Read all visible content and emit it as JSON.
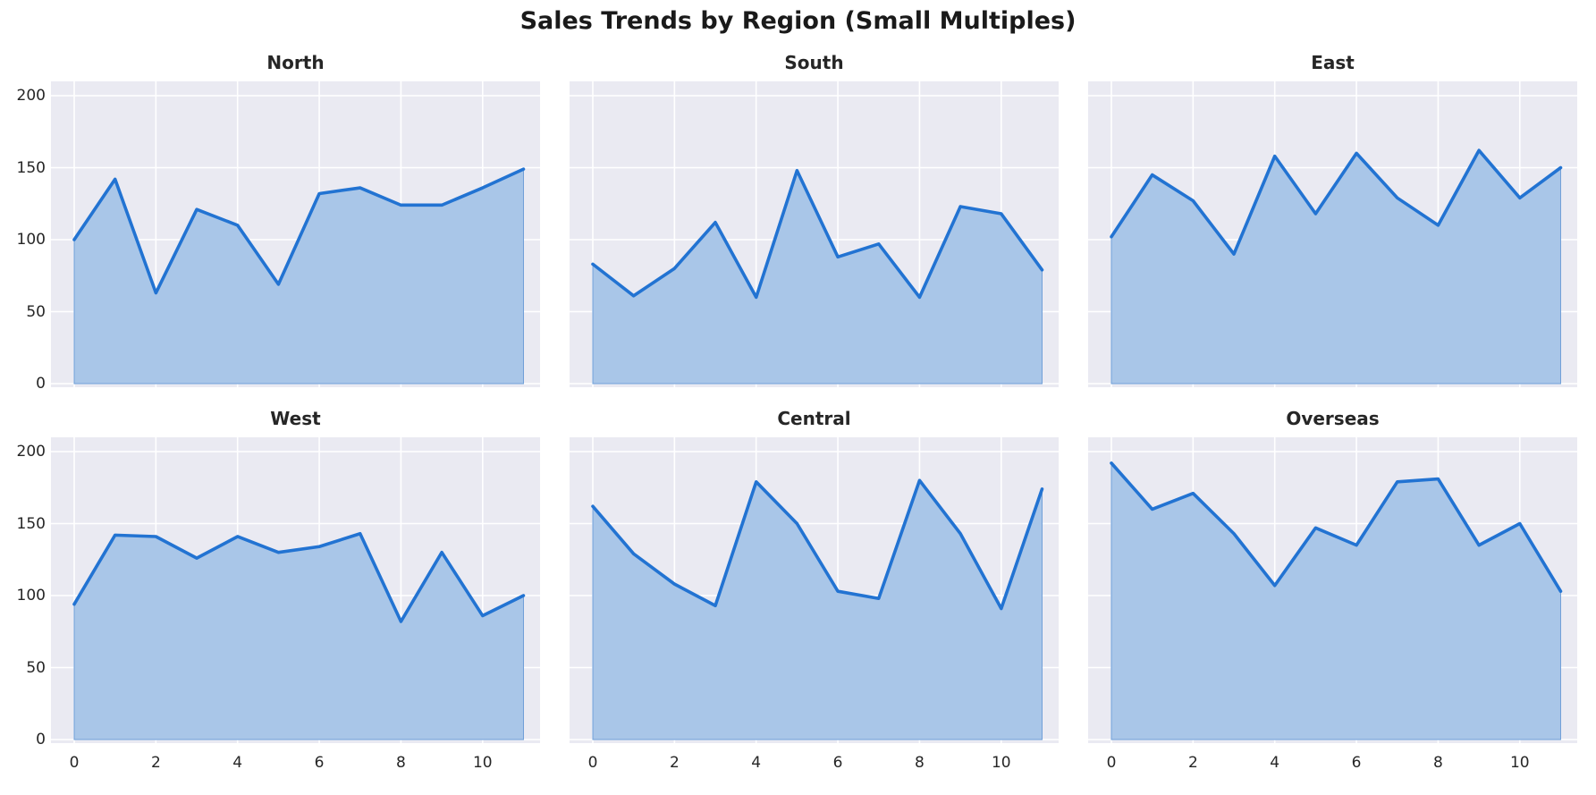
{
  "page": {
    "title": "Sales Trends by Region (Small Multiples)"
  },
  "chart_data": {
    "type": "area",
    "title": "Sales Trends by Region (Small Multiples)",
    "x": [
      0,
      1,
      2,
      3,
      4,
      5,
      6,
      7,
      8,
      9,
      10,
      11
    ],
    "xticks": [
      0,
      2,
      4,
      6,
      8,
      10
    ],
    "yticks": [
      0,
      50,
      100,
      150,
      200
    ],
    "ylim": [
      0,
      200
    ],
    "grid": true,
    "legend": false,
    "layout": {
      "rows": 2,
      "cols": 3,
      "shared_x": true,
      "shared_y": true
    },
    "colors": {
      "line": "#2273d2",
      "fill": "#a9c6e8",
      "fill_edge": "#6f9fd8",
      "axes_bg": "#eaeaf2",
      "grid": "#ffffff",
      "text": "#262626",
      "figure_bg": "#ffffff"
    },
    "subplots": [
      {
        "title": "North",
        "values": [
          100,
          142,
          63,
          121,
          110,
          69,
          132,
          136,
          124,
          124,
          136,
          149
        ]
      },
      {
        "title": "South",
        "values": [
          83,
          61,
          80,
          112,
          60,
          148,
          88,
          97,
          60,
          123,
          118,
          79
        ]
      },
      {
        "title": "East",
        "values": [
          102,
          145,
          127,
          90,
          158,
          118,
          160,
          129,
          110,
          162,
          129,
          150
        ]
      },
      {
        "title": "West",
        "values": [
          94,
          142,
          141,
          126,
          141,
          130,
          134,
          143,
          82,
          130,
          86,
          100
        ]
      },
      {
        "title": "Central",
        "values": [
          162,
          129,
          108,
          93,
          179,
          150,
          103,
          98,
          180,
          143,
          91,
          174
        ]
      },
      {
        "title": "Overseas",
        "values": [
          192,
          160,
          171,
          143,
          107,
          147,
          135,
          179,
          181,
          135,
          150,
          103
        ]
      }
    ]
  }
}
